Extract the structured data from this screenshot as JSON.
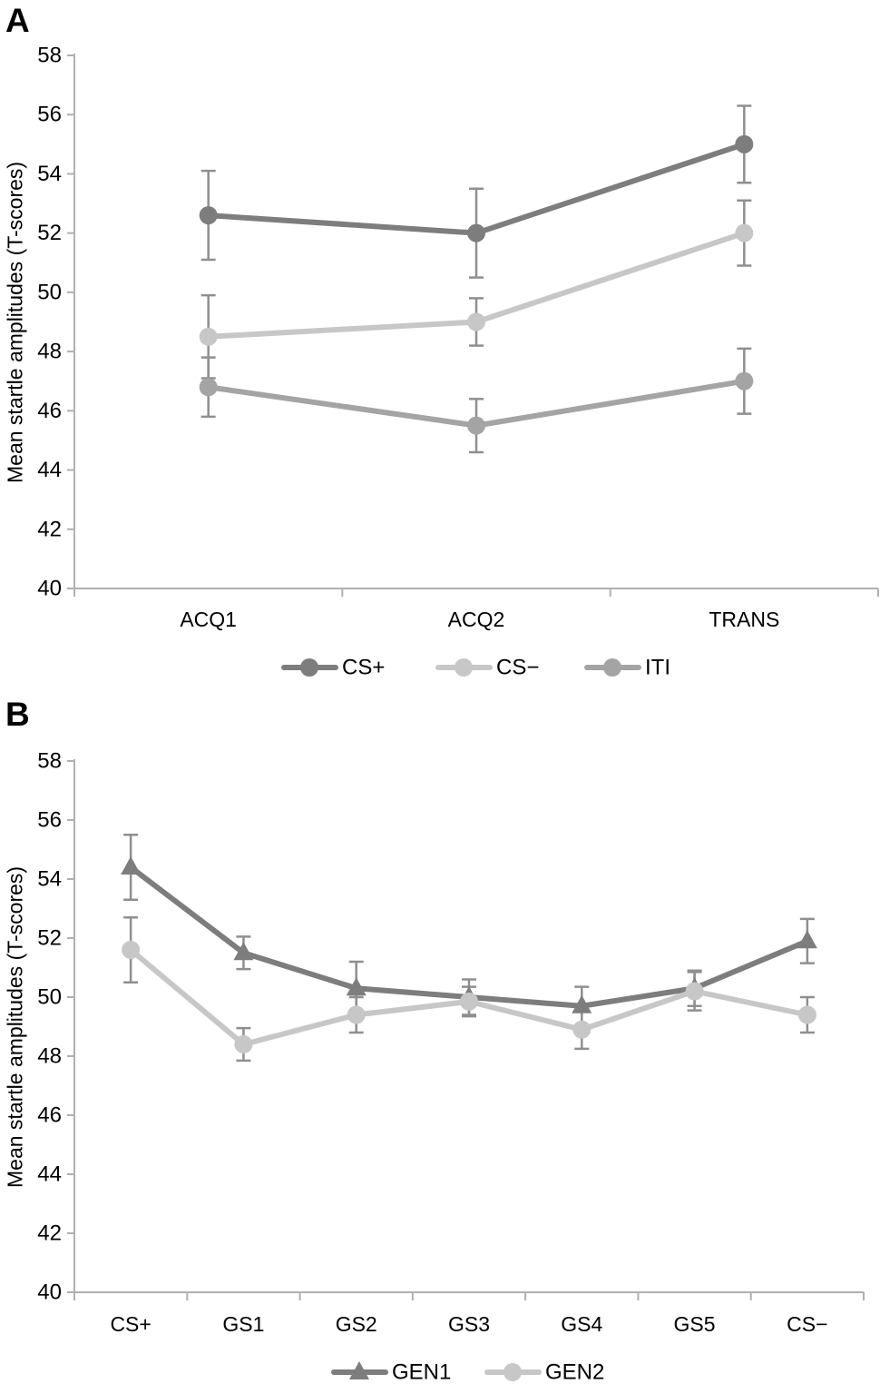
{
  "figure": {
    "panels": [
      {
        "label": "A"
      },
      {
        "label": "B"
      }
    ]
  },
  "colors": {
    "dark_series": "#7d7d7d",
    "light_series": "#c7c7c7",
    "medium_series": "#a4a4a4",
    "error_bar": "#8f8f8f",
    "axis": "#b0b0b0",
    "text": "#000000"
  },
  "chart_data": [
    {
      "type": "line",
      "panel": "A",
      "title": "",
      "xlabel": "",
      "ylabel": "Mean startle amplitudes (T-scores)",
      "ylim": [
        40,
        58
      ],
      "yticks": [
        58,
        56,
        54,
        52,
        50,
        48,
        46,
        44,
        42,
        40
      ],
      "grid": false,
      "legend_position": "bottom",
      "categories": [
        "ACQ1",
        "ACQ2",
        "TRANS"
      ],
      "series": [
        {
          "name": "CS+",
          "marker": "circle",
          "color": "#7d7d7d",
          "values": [
            52.6,
            52.0,
            55.0
          ],
          "errors": [
            1.5,
            1.5,
            1.3
          ]
        },
        {
          "name": "CS−",
          "marker": "circle",
          "color": "#c7c7c7",
          "values": [
            48.5,
            49.0,
            52.0
          ],
          "errors": [
            1.4,
            0.8,
            1.1
          ]
        },
        {
          "name": "ITI",
          "marker": "circle",
          "color": "#a4a4a4",
          "values": [
            46.8,
            45.5,
            47.0
          ],
          "errors": [
            1.0,
            0.9,
            1.1
          ]
        }
      ]
    },
    {
      "type": "line",
      "panel": "B",
      "title": "",
      "xlabel": "",
      "ylabel": "Mean startle amplitudes (T-scores)",
      "ylim": [
        40,
        58
      ],
      "yticks": [
        58,
        56,
        54,
        52,
        50,
        48,
        46,
        44,
        42,
        40
      ],
      "grid": false,
      "legend_position": "bottom",
      "categories": [
        "CS+",
        "GS1",
        "GS2",
        "GS3",
        "GS4",
        "GS5",
        "CS−"
      ],
      "series": [
        {
          "name": "GEN1",
          "marker": "triangle",
          "color": "#7d7d7d",
          "values": [
            54.4,
            51.5,
            50.3,
            50.0,
            49.7,
            50.3,
            51.9
          ],
          "errors": [
            1.1,
            0.55,
            0.9,
            0.6,
            0.65,
            0.6,
            0.75
          ]
        },
        {
          "name": "GEN2",
          "marker": "circle",
          "color": "#c7c7c7",
          "values": [
            51.6,
            48.4,
            49.4,
            49.85,
            48.9,
            50.2,
            49.4
          ],
          "errors": [
            1.1,
            0.55,
            0.6,
            0.5,
            0.65,
            0.65,
            0.6
          ]
        }
      ]
    }
  ]
}
